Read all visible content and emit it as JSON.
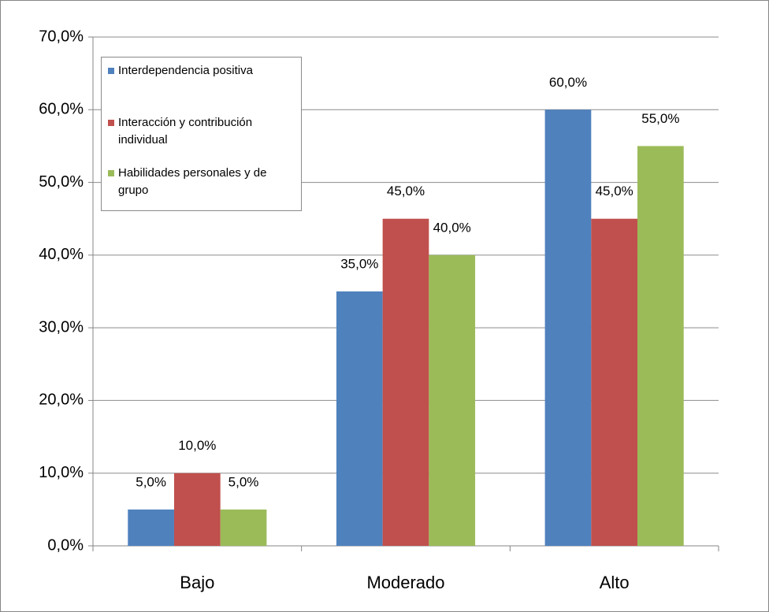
{
  "chart_data": {
    "type": "bar",
    "categories": [
      "Bajo",
      "Moderado",
      "Alto"
    ],
    "series": [
      {
        "name": "Interdependencia positiva",
        "color": "#4f81bd",
        "values": [
          5,
          35,
          60
        ],
        "value_labels": [
          "5,0%",
          "35,0%",
          "60,0%"
        ]
      },
      {
        "name": "Interacción y contribución individual",
        "color": "#c0504d",
        "values": [
          10,
          45,
          45
        ],
        "value_labels": [
          "10,0%",
          "45,0%",
          "45,0%"
        ]
      },
      {
        "name": "Habilidades personales y de grupo",
        "color": "#9bbb59",
        "values": [
          5,
          40,
          55
        ],
        "value_labels": [
          "5,0%",
          "40,0%",
          "55,0%"
        ]
      }
    ],
    "ylim": [
      0,
      70
    ],
    "yticks": [
      {
        "value": 0,
        "label": "0,0%"
      },
      {
        "value": 10,
        "label": "10,0%"
      },
      {
        "value": 20,
        "label": "20,0%"
      },
      {
        "value": 30,
        "label": "30,0%"
      },
      {
        "value": 40,
        "label": "40,0%"
      },
      {
        "value": 50,
        "label": "50,0%"
      },
      {
        "value": 60,
        "label": "60,0%"
      },
      {
        "value": 70,
        "label": "70,0%"
      }
    ],
    "grid": true,
    "legend": "top-left"
  }
}
